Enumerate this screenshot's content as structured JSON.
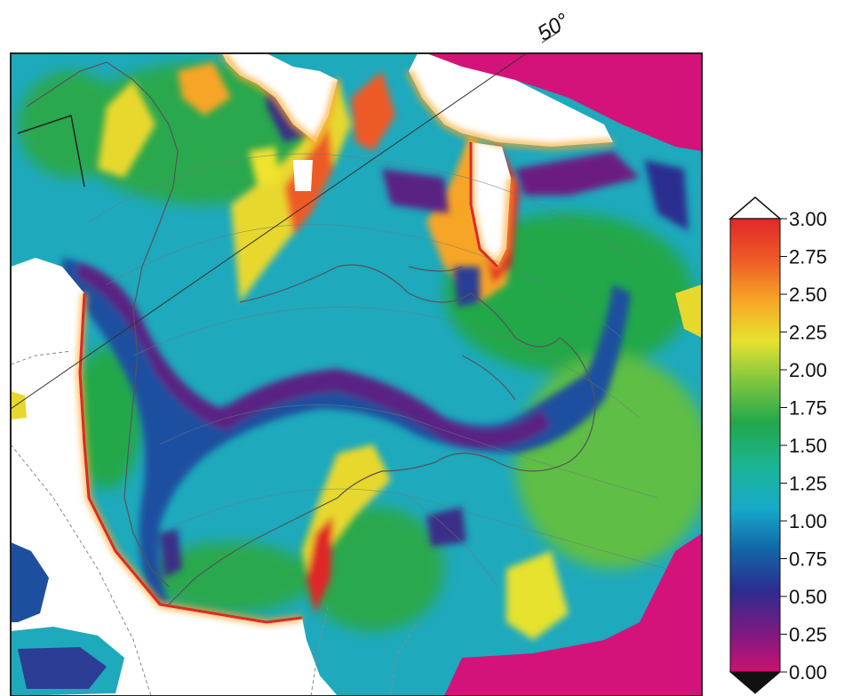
{
  "map": {
    "graticule_label": "50°"
  },
  "colorbar": {
    "ticks": [
      "3.00",
      "2.75",
      "2.50",
      "2.25",
      "2.00",
      "1.75",
      "1.50",
      "1.25",
      "1.00",
      "0.75",
      "0.50",
      "0.25",
      "0.00"
    ],
    "min": 0.0,
    "max": 3.0,
    "over_color": "#ffffff",
    "under_color": "#111111",
    "stops": [
      "#cc1170",
      "#7a1a82",
      "#2c2d8f",
      "#1266a8",
      "#17a9c9",
      "#1bb596",
      "#22a84a",
      "#7cc640",
      "#e6e22e",
      "#f7a526",
      "#ee5a27",
      "#e02828"
    ]
  },
  "colors": {
    "land_white": "#ffffff",
    "low_magenta": "#d4137a",
    "border_gray": "#8a8a8a",
    "frame": "#222222"
  }
}
